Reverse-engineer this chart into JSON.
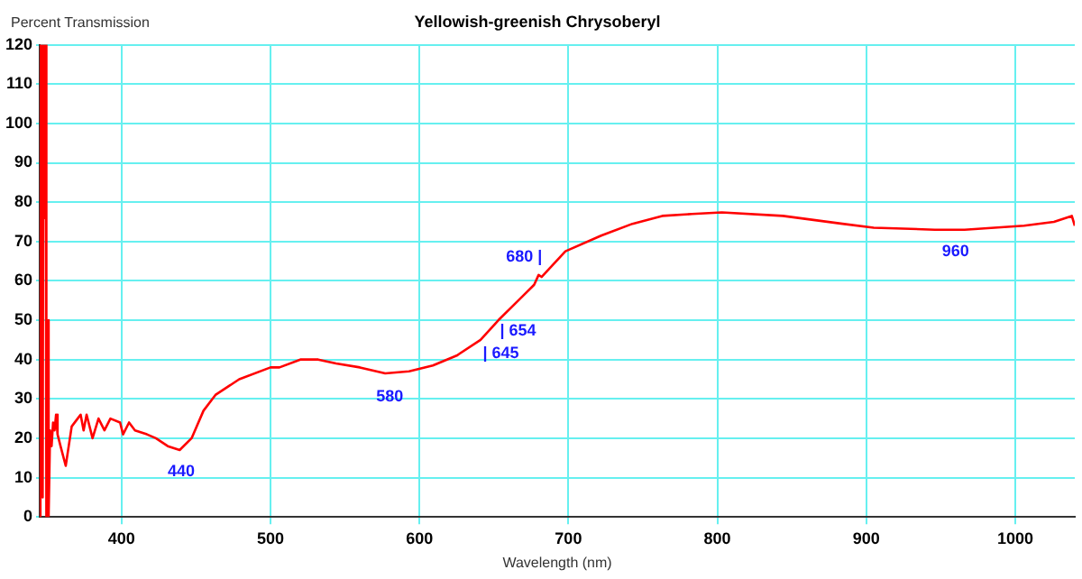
{
  "chart_data": {
    "type": "line",
    "title": "Yellowish-greenish Chrysoberyl",
    "xlabel": "Wavelength (nm)",
    "ylabel": "Percent Transmission",
    "xlim": [
      345,
      1040
    ],
    "xticks": [
      400,
      500,
      600,
      700,
      800,
      900,
      1000
    ],
    "ylim": [
      0,
      120
    ],
    "yticks": [
      0,
      10,
      20,
      30,
      40,
      50,
      60,
      70,
      80,
      90,
      100,
      110,
      120
    ],
    "grid": true,
    "legend": false,
    "marker": "none",
    "line_style": "solid",
    "series": [
      {
        "color": "#ff0000",
        "x": [
          345,
          345.5,
          346.5,
          347,
          347.5,
          348,
          348.5,
          349,
          349.5,
          350,
          351,
          352,
          353,
          354,
          355,
          356,
          357,
          359,
          362.5,
          366.5,
          370.5,
          372.5,
          374.5,
          376.5,
          380.5,
          384.5,
          388.5,
          392.5,
          399,
          401,
          405,
          409,
          417,
          423,
          431,
          439,
          447,
          455,
          463,
          479,
          500,
          506,
          520,
          532,
          544,
          560,
          577,
          593,
          609,
          625,
          641,
          653,
          669,
          677,
          680,
          682,
          698,
          722,
          743,
          763,
          783,
          803,
          844,
          884,
          905,
          946,
          966,
          1006,
          1026,
          1038,
          1040
        ],
        "values": [
          0,
          120,
          120,
          5,
          120,
          76,
          120,
          120,
          0,
          50,
          0,
          22,
          18,
          24,
          22,
          26,
          21,
          18,
          13,
          23,
          25,
          26,
          22,
          26,
          20,
          25,
          22,
          25,
          24,
          21,
          24,
          22,
          21,
          20,
          18,
          17,
          20,
          27,
          31,
          35,
          38,
          38,
          40,
          40,
          39,
          38,
          36.5,
          37,
          38.5,
          41,
          45,
          50,
          56,
          59,
          61.5,
          61,
          67.5,
          71.5,
          74.5,
          76.5,
          77,
          77.4,
          76.5,
          74.5,
          73.5,
          73,
          73,
          74,
          75,
          76.5,
          74
        ]
      }
    ],
    "annotations": [
      {
        "text": "440",
        "x": 440,
        "y": 17
      },
      {
        "text": "580",
        "x": 580,
        "y": 37
      },
      {
        "text": "| 645",
        "x": 645,
        "y": 47
      },
      {
        "text": "| 654",
        "x": 654,
        "y": 50
      },
      {
        "text": "680 |",
        "x": 680,
        "y": 61.5
      },
      {
        "text": "960",
        "x": 960,
        "y": 73
      }
    ]
  }
}
